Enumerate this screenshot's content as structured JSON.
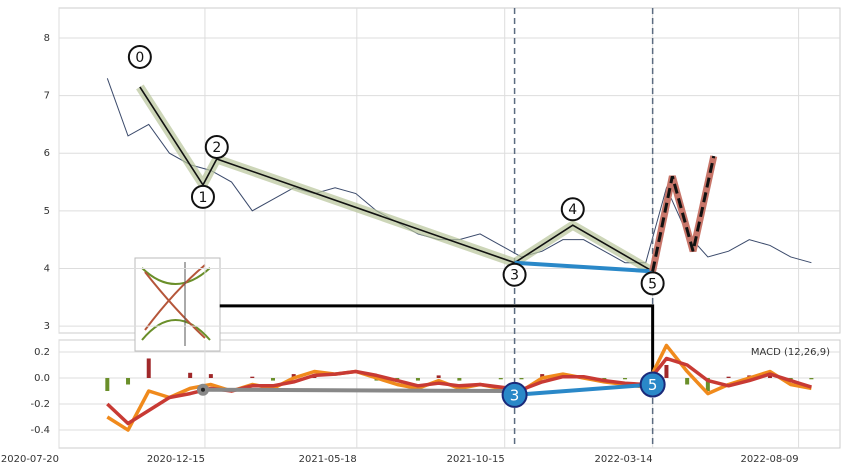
{
  "chart_data": {
    "type": "line",
    "xlim": [
      "2020-07-20",
      "2022-09-20"
    ],
    "xticks": [
      "2020-07-20",
      "2020-12-15",
      "2021-05-18",
      "2021-10-15",
      "2022-03-14",
      "2022-08-09"
    ],
    "grid": true,
    "price": {
      "color": "#3b4a6b",
      "ylim": [
        2.88,
        8.52
      ],
      "yticks": [
        3,
        4,
        5,
        6,
        7,
        8
      ],
      "x": [
        "2020-09-07",
        "2020-09-28",
        "2020-10-19",
        "2020-11-09",
        "2020-11-30",
        "2020-12-21",
        "2021-01-11",
        "2021-02-01",
        "2021-02-22",
        "2021-03-15",
        "2021-04-05",
        "2021-04-26",
        "2021-05-17",
        "2021-06-07",
        "2021-06-28",
        "2021-07-19",
        "2021-08-09",
        "2021-08-30",
        "2021-09-20",
        "2021-10-11",
        "2021-11-01",
        "2021-11-22",
        "2021-12-13",
        "2022-01-03",
        "2022-01-24",
        "2022-02-14",
        "2022-03-07",
        "2022-03-28",
        "2022-04-18",
        "2022-05-09",
        "2022-05-30",
        "2022-06-20",
        "2022-07-11",
        "2022-08-01",
        "2022-08-22"
      ],
      "values": [
        7.3,
        6.3,
        6.5,
        6.0,
        5.8,
        5.7,
        5.5,
        5.0,
        5.2,
        5.4,
        5.3,
        5.4,
        5.3,
        5.0,
        4.8,
        4.6,
        4.5,
        4.5,
        4.6,
        4.4,
        4.2,
        4.3,
        4.5,
        4.5,
        4.3,
        4.1,
        4.1,
        5.4,
        4.6,
        4.2,
        4.3,
        4.5,
        4.4,
        4.2,
        4.1
      ]
    },
    "waves": [
      {
        "label": "0",
        "x": "2020-10-10",
        "y": 7.15
      },
      {
        "label": "1",
        "x": "2020-12-13",
        "y": 5.45
      },
      {
        "label": "2",
        "x": "2020-12-27",
        "y": 5.9
      },
      {
        "label": "3",
        "x": "2021-10-25",
        "y": 4.1
      },
      {
        "label": "4",
        "x": "2021-12-23",
        "y": 4.75
      },
      {
        "label": "5",
        "x": "2022-03-14",
        "y": 3.95
      }
    ],
    "projection": {
      "x": [
        "2022-03-14",
        "2022-04-03",
        "2022-04-24",
        "2022-05-15"
      ],
      "y": [
        3.95,
        5.6,
        4.3,
        5.95
      ]
    },
    "connector": {
      "x": "2020-12-30",
      "y": 3.35
    },
    "macd": {
      "legend": "MACD (12,26,9)",
      "ylim": [
        -0.538,
        0.292
      ],
      "yticks": [
        -0.4,
        -0.2,
        {
          "value": 0,
          "label": "0.0"
        },
        0.2
      ],
      "series": [
        {
          "name": "macd",
          "color": "#f08a1c",
          "values": [
            -0.3,
            -0.4,
            -0.1,
            -0.15,
            -0.08,
            -0.05,
            -0.1,
            -0.05,
            -0.08,
            0.0,
            0.05,
            0.03,
            0.05,
            0.0,
            -0.05,
            -0.08,
            -0.02,
            -0.08,
            -0.05,
            -0.08,
            -0.1,
            0.0,
            0.03,
            0.0,
            -0.03,
            -0.05,
            -0.07,
            0.25,
            0.05,
            -0.12,
            -0.05,
            0.0,
            0.05,
            -0.05,
            -0.08
          ]
        },
        {
          "name": "signal",
          "color": "#c83a34",
          "values": [
            -0.2,
            -0.35,
            -0.25,
            -0.15,
            -0.12,
            -0.08,
            -0.1,
            -0.06,
            -0.06,
            -0.03,
            0.02,
            0.03,
            0.05,
            0.02,
            -0.02,
            -0.06,
            -0.04,
            -0.06,
            -0.05,
            -0.07,
            -0.09,
            -0.03,
            0.01,
            0.01,
            -0.02,
            -0.04,
            -0.05,
            0.15,
            0.1,
            -0.02,
            -0.06,
            -0.02,
            0.03,
            -0.02,
            -0.07
          ]
        }
      ],
      "histogram": [
        -0.1,
        -0.05,
        0.15,
        0.0,
        0.04,
        0.03,
        0.0,
        0.01,
        -0.02,
        0.03,
        0.03,
        0.0,
        0.0,
        -0.02,
        -0.03,
        -0.02,
        0.02,
        -0.02,
        0.0,
        -0.01,
        -0.01,
        0.03,
        0.02,
        -0.01,
        -0.01,
        -0.01,
        -0.02,
        0.1,
        -0.05,
        -0.1,
        0.01,
        0.02,
        0.02,
        -0.03,
        -0.01
      ],
      "marks": [
        {
          "label": "3",
          "x": "2021-10-25",
          "y": -0.13
        },
        {
          "label": "5",
          "x": "2022-03-14",
          "y": -0.05
        }
      ],
      "trend": {
        "x": [
          "2020-12-13",
          "2021-10-25"
        ],
        "y": [
          -0.09,
          -0.1
        ]
      }
    }
  }
}
